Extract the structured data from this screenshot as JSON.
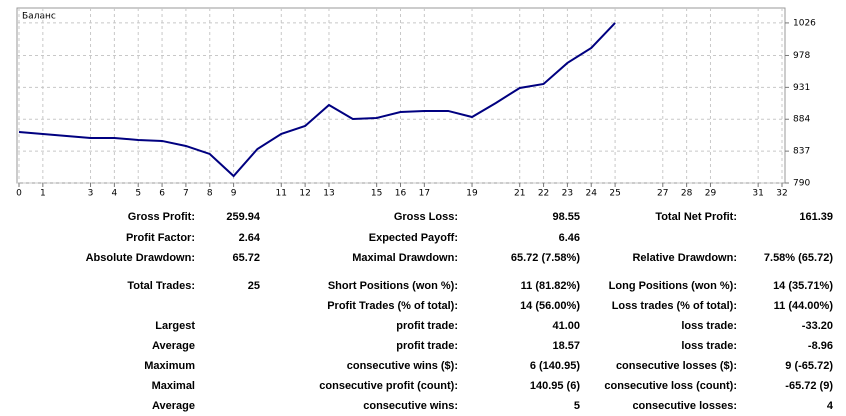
{
  "chart_data": {
    "type": "line",
    "title": "Баланс",
    "x": [
      0,
      1,
      2,
      3,
      4,
      5,
      6,
      7,
      8,
      9,
      10,
      11,
      12,
      13,
      14,
      15,
      16,
      17,
      18,
      19,
      20,
      21,
      22,
      23,
      24,
      25
    ],
    "series": [
      {
        "name": "Баланс",
        "color": "#000080",
        "values": [
          865.2,
          862.3,
          859.3,
          856.4,
          856.4,
          853.4,
          852.0,
          844.6,
          832.8,
          800.3,
          840.1,
          862.3,
          874.1,
          905.0,
          884.4,
          885.9,
          894.7,
          896.2,
          896.2,
          887.3,
          908.0,
          930.1,
          936.0,
          967.0,
          989.1,
          1026.0
        ]
      }
    ],
    "xlim": [
      0,
      32
    ],
    "xticks": [
      0,
      1,
      3,
      4,
      5,
      6,
      7,
      8,
      9,
      11,
      12,
      13,
      15,
      16,
      17,
      19,
      21,
      22,
      23,
      24,
      25,
      27,
      28,
      29,
      31,
      32
    ],
    "ylim": [
      790,
      1048
    ],
    "yticks": [
      790,
      837,
      884,
      931,
      978,
      1026
    ],
    "grid": true
  },
  "report": {
    "rows": [
      [
        "Gross Profit:",
        "259.94",
        "Gross Loss:",
        "98.55",
        "Total Net Profit:",
        "161.39"
      ],
      [
        "Profit Factor:",
        "2.64",
        "Expected Payoff:",
        "6.46",
        null,
        null
      ],
      [
        "Absolute Drawdown:",
        "65.72",
        "Maximal Drawdown:",
        "65.72 (7.58%)",
        "Relative Drawdown:",
        "7.58% (65.72)"
      ],
      [
        "Total Trades:",
        "25",
        "Short Positions (won %):",
        "11 (81.82%)",
        "Long Positions (won %):",
        "14 (35.71%)"
      ],
      [
        null,
        null,
        "Profit Trades (% of total):",
        "14 (56.00%)",
        "Loss trades (% of total):",
        "11 (44.00%)"
      ],
      [
        "Largest",
        null,
        "profit trade:",
        "41.00",
        "loss trade:",
        "-33.20"
      ],
      [
        "Average",
        null,
        "profit trade:",
        "18.57",
        "loss trade:",
        "-8.96"
      ],
      [
        "Maximum",
        null,
        "consecutive wins ($):",
        "6 (140.95)",
        "consecutive losses ($):",
        "9 (-65.72)"
      ],
      [
        "Maximal",
        null,
        "consecutive profit (count):",
        "140.95 (6)",
        "consecutive loss (count):",
        "-65.72 (9)"
      ],
      [
        "Average",
        null,
        "consecutive wins:",
        "5",
        "consecutive losses:",
        "4"
      ]
    ]
  }
}
